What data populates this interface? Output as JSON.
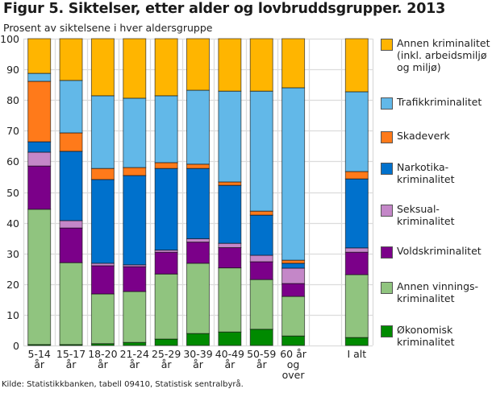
{
  "chart_data": {
    "type": "bar",
    "stacked": true,
    "title": "Figur 5. Siktelser, etter alder og lovbruddsgrupper. 2013",
    "subtitle": "Prosent av siktelsene i hver aldersgruppe",
    "xlabel": "",
    "ylabel": "Prosent av siktelsene i hver aldersgruppe",
    "ylim": [
      0,
      100
    ],
    "yticks": [
      0,
      10,
      20,
      30,
      40,
      50,
      60,
      70,
      80,
      90,
      100
    ],
    "grid": true,
    "legend_position": "right",
    "categories": [
      [
        "5-14",
        "år"
      ],
      [
        "15-17",
        "år"
      ],
      [
        "18-20",
        "år"
      ],
      [
        "21-24",
        "år"
      ],
      [
        "25-29",
        "år"
      ],
      [
        "30-39",
        "år"
      ],
      [
        "40-49",
        "år"
      ],
      [
        "50-59",
        "år"
      ],
      [
        "60 år",
        "og",
        "over"
      ],
      [],
      [
        "I alt"
      ]
    ],
    "series": [
      {
        "name": "Økonomisk kriminalitet",
        "legend": "Økonomisk\nkriminalitet",
        "color": "#008a00",
        "values": [
          0.3,
          0.3,
          0.6,
          1.0,
          2.1,
          3.9,
          4.4,
          5.3,
          3.1,
          null,
          2.6
        ]
      },
      {
        "name": "Annen vinningskriminalitet",
        "legend": "Annen vinnings-\nkriminalitet",
        "color": "#90c47f",
        "values": [
          44.1,
          26.7,
          16.2,
          16.6,
          21.2,
          22.9,
          20.9,
          16.2,
          12.9,
          null,
          20.5
        ]
      },
      {
        "name": "Voldskriminalitet",
        "legend": "Voldskriminalitet",
        "color": "#7b0089",
        "values": [
          14.1,
          11.3,
          9.2,
          8.1,
          7.1,
          6.9,
          6.6,
          5.8,
          4.2,
          null,
          7.3
        ]
      },
      {
        "name": "Seksualkriminalitet",
        "legend": "Seksual-\nkriminalitet",
        "color": "#c487c8",
        "values": [
          4.5,
          2.4,
          0.8,
          0.6,
          0.7,
          1.1,
          1.4,
          2.1,
          5.0,
          null,
          1.4
        ]
      },
      {
        "name": "Narkotikakriminalitet",
        "legend": "Narkotika-\nkriminalitet",
        "color": "#0071cc",
        "values": [
          3.4,
          22.6,
          27.3,
          29.1,
          26.6,
          22.9,
          18.9,
          13.1,
          1.6,
          null,
          22.5
        ]
      },
      {
        "name": "Skadeverk",
        "legend": "Skadeverk",
        "color": "#ff7a1a",
        "values": [
          19.7,
          6.0,
          3.6,
          2.6,
          1.9,
          1.4,
          1.1,
          1.3,
          1.0,
          null,
          2.4
        ]
      },
      {
        "name": "Trafikkriminalitet",
        "legend": "Trafikkriminalitet",
        "color": "#62b8e8",
        "values": [
          2.6,
          17.1,
          23.7,
          22.6,
          21.8,
          24.1,
          29.6,
          39.1,
          56.2,
          null,
          26.0
        ]
      },
      {
        "name": "Annen kriminalitet (inkl. arbeidsmiljø og miljø)",
        "legend": "Annen kriminalitet\n(inkl. arbeidsmiljø\nog miljø)",
        "color": "#ffb500",
        "values": [
          11.3,
          13.6,
          18.6,
          19.4,
          18.6,
          16.8,
          17.1,
          17.1,
          16.0,
          null,
          17.3
        ]
      }
    ]
  },
  "source": "Kilde: Statistikkbanken, tabell 09410, Statistisk sentralbyrå."
}
